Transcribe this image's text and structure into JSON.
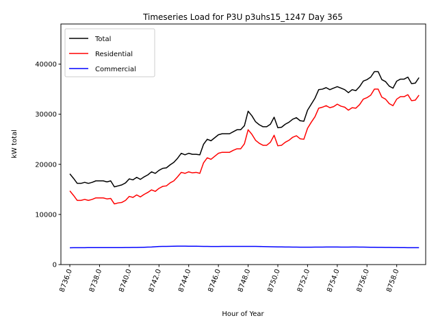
{
  "chart_data": {
    "type": "line",
    "title": "Timeseries Load for P3U p3uhs15_1247  Day 365",
    "xlabel": "Hour of Year",
    "ylabel": "kW total",
    "xlim": [
      8735.4,
      8759.95
    ],
    "ylim": [
      0,
      48000
    ],
    "xticks": [
      8736,
      8738,
      8740,
      8742,
      8744,
      8746,
      8748,
      8750,
      8752,
      8754,
      8756,
      8758
    ],
    "xtick_labels": [
      "8736.0",
      "8738.0",
      "8740.0",
      "8742.0",
      "8744.0",
      "8746.0",
      "8748.0",
      "8750.0",
      "8752.0",
      "8754.0",
      "8756.0",
      "8758.0"
    ],
    "yticks": [
      0,
      10000,
      20000,
      30000,
      40000
    ],
    "ytick_labels": [
      "0",
      "10000",
      "20000",
      "30000",
      "40000"
    ],
    "grid": false,
    "legend_position": "top-left",
    "x": [
      8736.0,
      8736.25,
      8736.5,
      8736.75,
      8737.0,
      8737.25,
      8737.5,
      8737.75,
      8738.0,
      8738.25,
      8738.5,
      8738.75,
      8739.0,
      8739.25,
      8739.5,
      8739.75,
      8740.0,
      8740.25,
      8740.5,
      8740.75,
      8741.0,
      8741.25,
      8741.5,
      8741.75,
      8742.0,
      8742.25,
      8742.5,
      8742.75,
      8743.0,
      8743.25,
      8743.5,
      8743.75,
      8744.0,
      8744.25,
      8744.5,
      8744.75,
      8745.0,
      8745.25,
      8745.5,
      8745.75,
      8746.0,
      8746.25,
      8746.5,
      8746.75,
      8747.0,
      8747.25,
      8747.5,
      8747.75,
      8748.0,
      8748.25,
      8748.5,
      8748.75,
      8749.0,
      8749.25,
      8749.5,
      8749.75,
      8750.0,
      8750.25,
      8750.5,
      8750.75,
      8751.0,
      8751.25,
      8751.5,
      8751.75,
      8752.0,
      8752.25,
      8752.5,
      8752.75,
      8753.0,
      8753.25,
      8753.5,
      8753.75,
      8754.0,
      8754.25,
      8754.5,
      8754.75,
      8755.0,
      8755.25,
      8755.5,
      8755.75,
      8756.0,
      8756.25,
      8756.5,
      8756.75,
      8757.0,
      8757.25,
      8757.5,
      8757.75,
      8758.0,
      8758.25,
      8758.5,
      8758.75,
      8759.0,
      8759.25,
      8759.5
    ],
    "series": [
      {
        "name": "Total",
        "color": "#000000",
        "values": [
          18100,
          17200,
          16200,
          16200,
          16400,
          16200,
          16400,
          16700,
          16700,
          16700,
          16500,
          16700,
          15500,
          15700,
          15900,
          16300,
          17100,
          16900,
          17400,
          17000,
          17500,
          17900,
          18500,
          18200,
          18800,
          19200,
          19300,
          19900,
          20400,
          21200,
          22200,
          21900,
          22200,
          22000,
          22000,
          21900,
          24000,
          25000,
          24700,
          25300,
          25900,
          26100,
          26100,
          26100,
          26500,
          26900,
          26900,
          27700,
          30600,
          29700,
          28500,
          27900,
          27500,
          27500,
          28000,
          29400,
          27300,
          27400,
          28000,
          28400,
          29000,
          29300,
          28700,
          28600,
          30800,
          32000,
          33200,
          34900,
          35000,
          35300,
          34900,
          35200,
          35500,
          35200,
          34900,
          34300,
          34900,
          34700,
          35500,
          36600,
          36900,
          37400,
          38500,
          38500,
          36900,
          36500,
          35600,
          35200,
          36600,
          37000,
          37000,
          37400,
          36100,
          36200,
          37300
        ]
      },
      {
        "name": "Residential",
        "color": "#ff0000",
        "values": [
          14700,
          13800,
          12800,
          12800,
          13000,
          12800,
          13000,
          13300,
          13300,
          13300,
          13100,
          13200,
          12100,
          12300,
          12400,
          12800,
          13600,
          13400,
          13900,
          13500,
          14000,
          14400,
          14900,
          14600,
          15200,
          15600,
          15700,
          16300,
          16700,
          17500,
          18400,
          18200,
          18500,
          18300,
          18400,
          18200,
          20300,
          21300,
          21000,
          21600,
          22200,
          22400,
          22400,
          22400,
          22800,
          23100,
          23100,
          24100,
          26900,
          26000,
          24800,
          24200,
          23800,
          23800,
          24400,
          25800,
          23700,
          23800,
          24400,
          24800,
          25400,
          25700,
          25100,
          25000,
          27200,
          28400,
          29500,
          31200,
          31400,
          31700,
          31300,
          31500,
          32000,
          31600,
          31400,
          30800,
          31300,
          31200,
          31900,
          33000,
          33300,
          33800,
          35000,
          35000,
          33400,
          33000,
          32100,
          31700,
          33000,
          33500,
          33500,
          33900,
          32700,
          32800,
          33800
        ]
      },
      {
        "name": "Commercial",
        "color": "#0000ff",
        "values": [
          3350,
          3360,
          3370,
          3370,
          3370,
          3380,
          3380,
          3380,
          3380,
          3380,
          3380,
          3390,
          3390,
          3390,
          3390,
          3400,
          3400,
          3410,
          3420,
          3430,
          3450,
          3480,
          3500,
          3550,
          3600,
          3620,
          3630,
          3640,
          3660,
          3670,
          3670,
          3670,
          3660,
          3660,
          3650,
          3640,
          3620,
          3620,
          3610,
          3610,
          3610,
          3620,
          3620,
          3620,
          3630,
          3630,
          3630,
          3630,
          3630,
          3630,
          3620,
          3610,
          3590,
          3570,
          3550,
          3540,
          3530,
          3520,
          3510,
          3500,
          3490,
          3480,
          3470,
          3470,
          3470,
          3470,
          3480,
          3490,
          3490,
          3500,
          3510,
          3510,
          3500,
          3490,
          3490,
          3490,
          3500,
          3500,
          3490,
          3480,
          3470,
          3460,
          3450,
          3440,
          3430,
          3420,
          3410,
          3400,
          3400,
          3390,
          3380,
          3370,
          3370,
          3370,
          3370
        ]
      }
    ]
  }
}
